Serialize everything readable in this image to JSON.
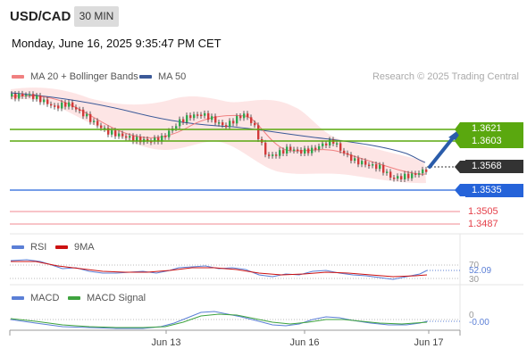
{
  "header": {
    "symbol": "USD/CAD",
    "interval": "30 MIN",
    "datetime": "Monday, June 16, 2025 9:35:47 PM CET"
  },
  "legend": {
    "ma20": "MA 20 + Bollinger Bands",
    "ma50": "MA 50",
    "credit": "Research © 2025 Trading Central"
  },
  "levels": {
    "r2": "1.3621",
    "r1": "1.3603",
    "current": "1.3568",
    "pivot": "1.3535",
    "s1": "1.3505",
    "s2": "1.3487"
  },
  "rsi": {
    "label": "RSI",
    "ma_label": "9MA",
    "level_70": "70",
    "value": "52.09",
    "level_30": "30"
  },
  "macd": {
    "label": "MACD",
    "signal_label": "MACD Signal",
    "zero": "0",
    "value": "-0.00"
  },
  "xaxis": {
    "labels": [
      "Jun 13",
      "Jun 16",
      "Jun 17"
    ]
  },
  "colors": {
    "resistance": "#5aa80f",
    "pivot": "#2563d9",
    "support": "#e5404a",
    "current_tag": "#333333",
    "ma20": "#f08080",
    "ma50": "#3b5998",
    "band_fill": "#fde0e0",
    "arrow": "#2a5caa",
    "rsi": "#5b7fd6",
    "rsi_ma": "#cc1111",
    "macd": "#5b7fd6",
    "macd_signal": "#3ea33e"
  }
}
